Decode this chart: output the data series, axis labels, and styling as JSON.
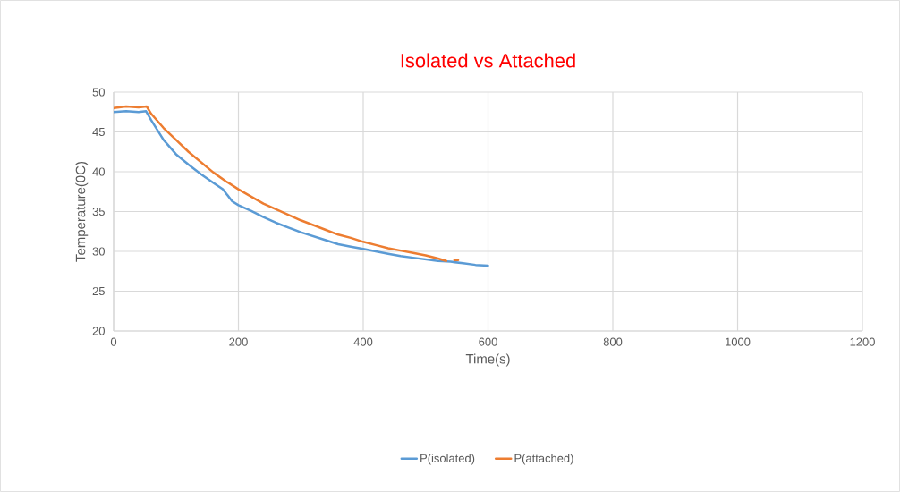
{
  "chart_data": {
    "type": "line",
    "title": "Isolated vs Attached",
    "xlabel": "Time(s)",
    "ylabel": "Temperature(0C)",
    "xlim": [
      0,
      1200
    ],
    "xticks": [
      0,
      200,
      400,
      600,
      800,
      1000,
      1200
    ],
    "ylim": [
      20,
      50
    ],
    "yticks": [
      20,
      25,
      30,
      35,
      40,
      45,
      50
    ],
    "grid": true,
    "legend": "bottom",
    "marker": "none",
    "line_style": "solid",
    "series": [
      {
        "name": "P(isolated)",
        "color": "#5b9bd5",
        "x": [
          0,
          20,
          40,
          52,
          60,
          80,
          100,
          120,
          140,
          160,
          175,
          190,
          200,
          220,
          240,
          260,
          280,
          300,
          320,
          340,
          360,
          380,
          400,
          420,
          440,
          460,
          480,
          500,
          520,
          540,
          560,
          580,
          600
        ],
        "values": [
          47.5,
          47.6,
          47.5,
          47.6,
          46.5,
          44.0,
          42.2,
          40.9,
          39.7,
          38.6,
          37.8,
          36.3,
          35.8,
          35.1,
          34.3,
          33.6,
          33.0,
          32.4,
          31.9,
          31.4,
          30.9,
          30.6,
          30.3,
          30.0,
          29.7,
          29.4,
          29.2,
          29.0,
          28.8,
          28.7,
          28.5,
          28.3,
          28.2
        ]
      },
      {
        "name": "P(attached)",
        "color": "#ed7d31",
        "x": [
          0,
          20,
          40,
          53,
          60,
          80,
          100,
          120,
          140,
          160,
          180,
          200,
          220,
          240,
          260,
          280,
          300,
          320,
          340,
          360,
          380,
          400,
          420,
          440,
          460,
          480,
          500,
          520,
          533,
          540,
          546,
          552
        ],
        "values": [
          48.0,
          48.2,
          48.1,
          48.2,
          47.3,
          45.5,
          44.0,
          42.5,
          41.2,
          39.9,
          38.8,
          37.8,
          36.9,
          36.0,
          35.3,
          34.6,
          33.9,
          33.3,
          32.7,
          32.1,
          31.7,
          31.2,
          30.8,
          30.4,
          30.1,
          29.8,
          29.5,
          29.1,
          28.8,
          null,
          28.9,
          28.9
        ]
      }
    ]
  }
}
